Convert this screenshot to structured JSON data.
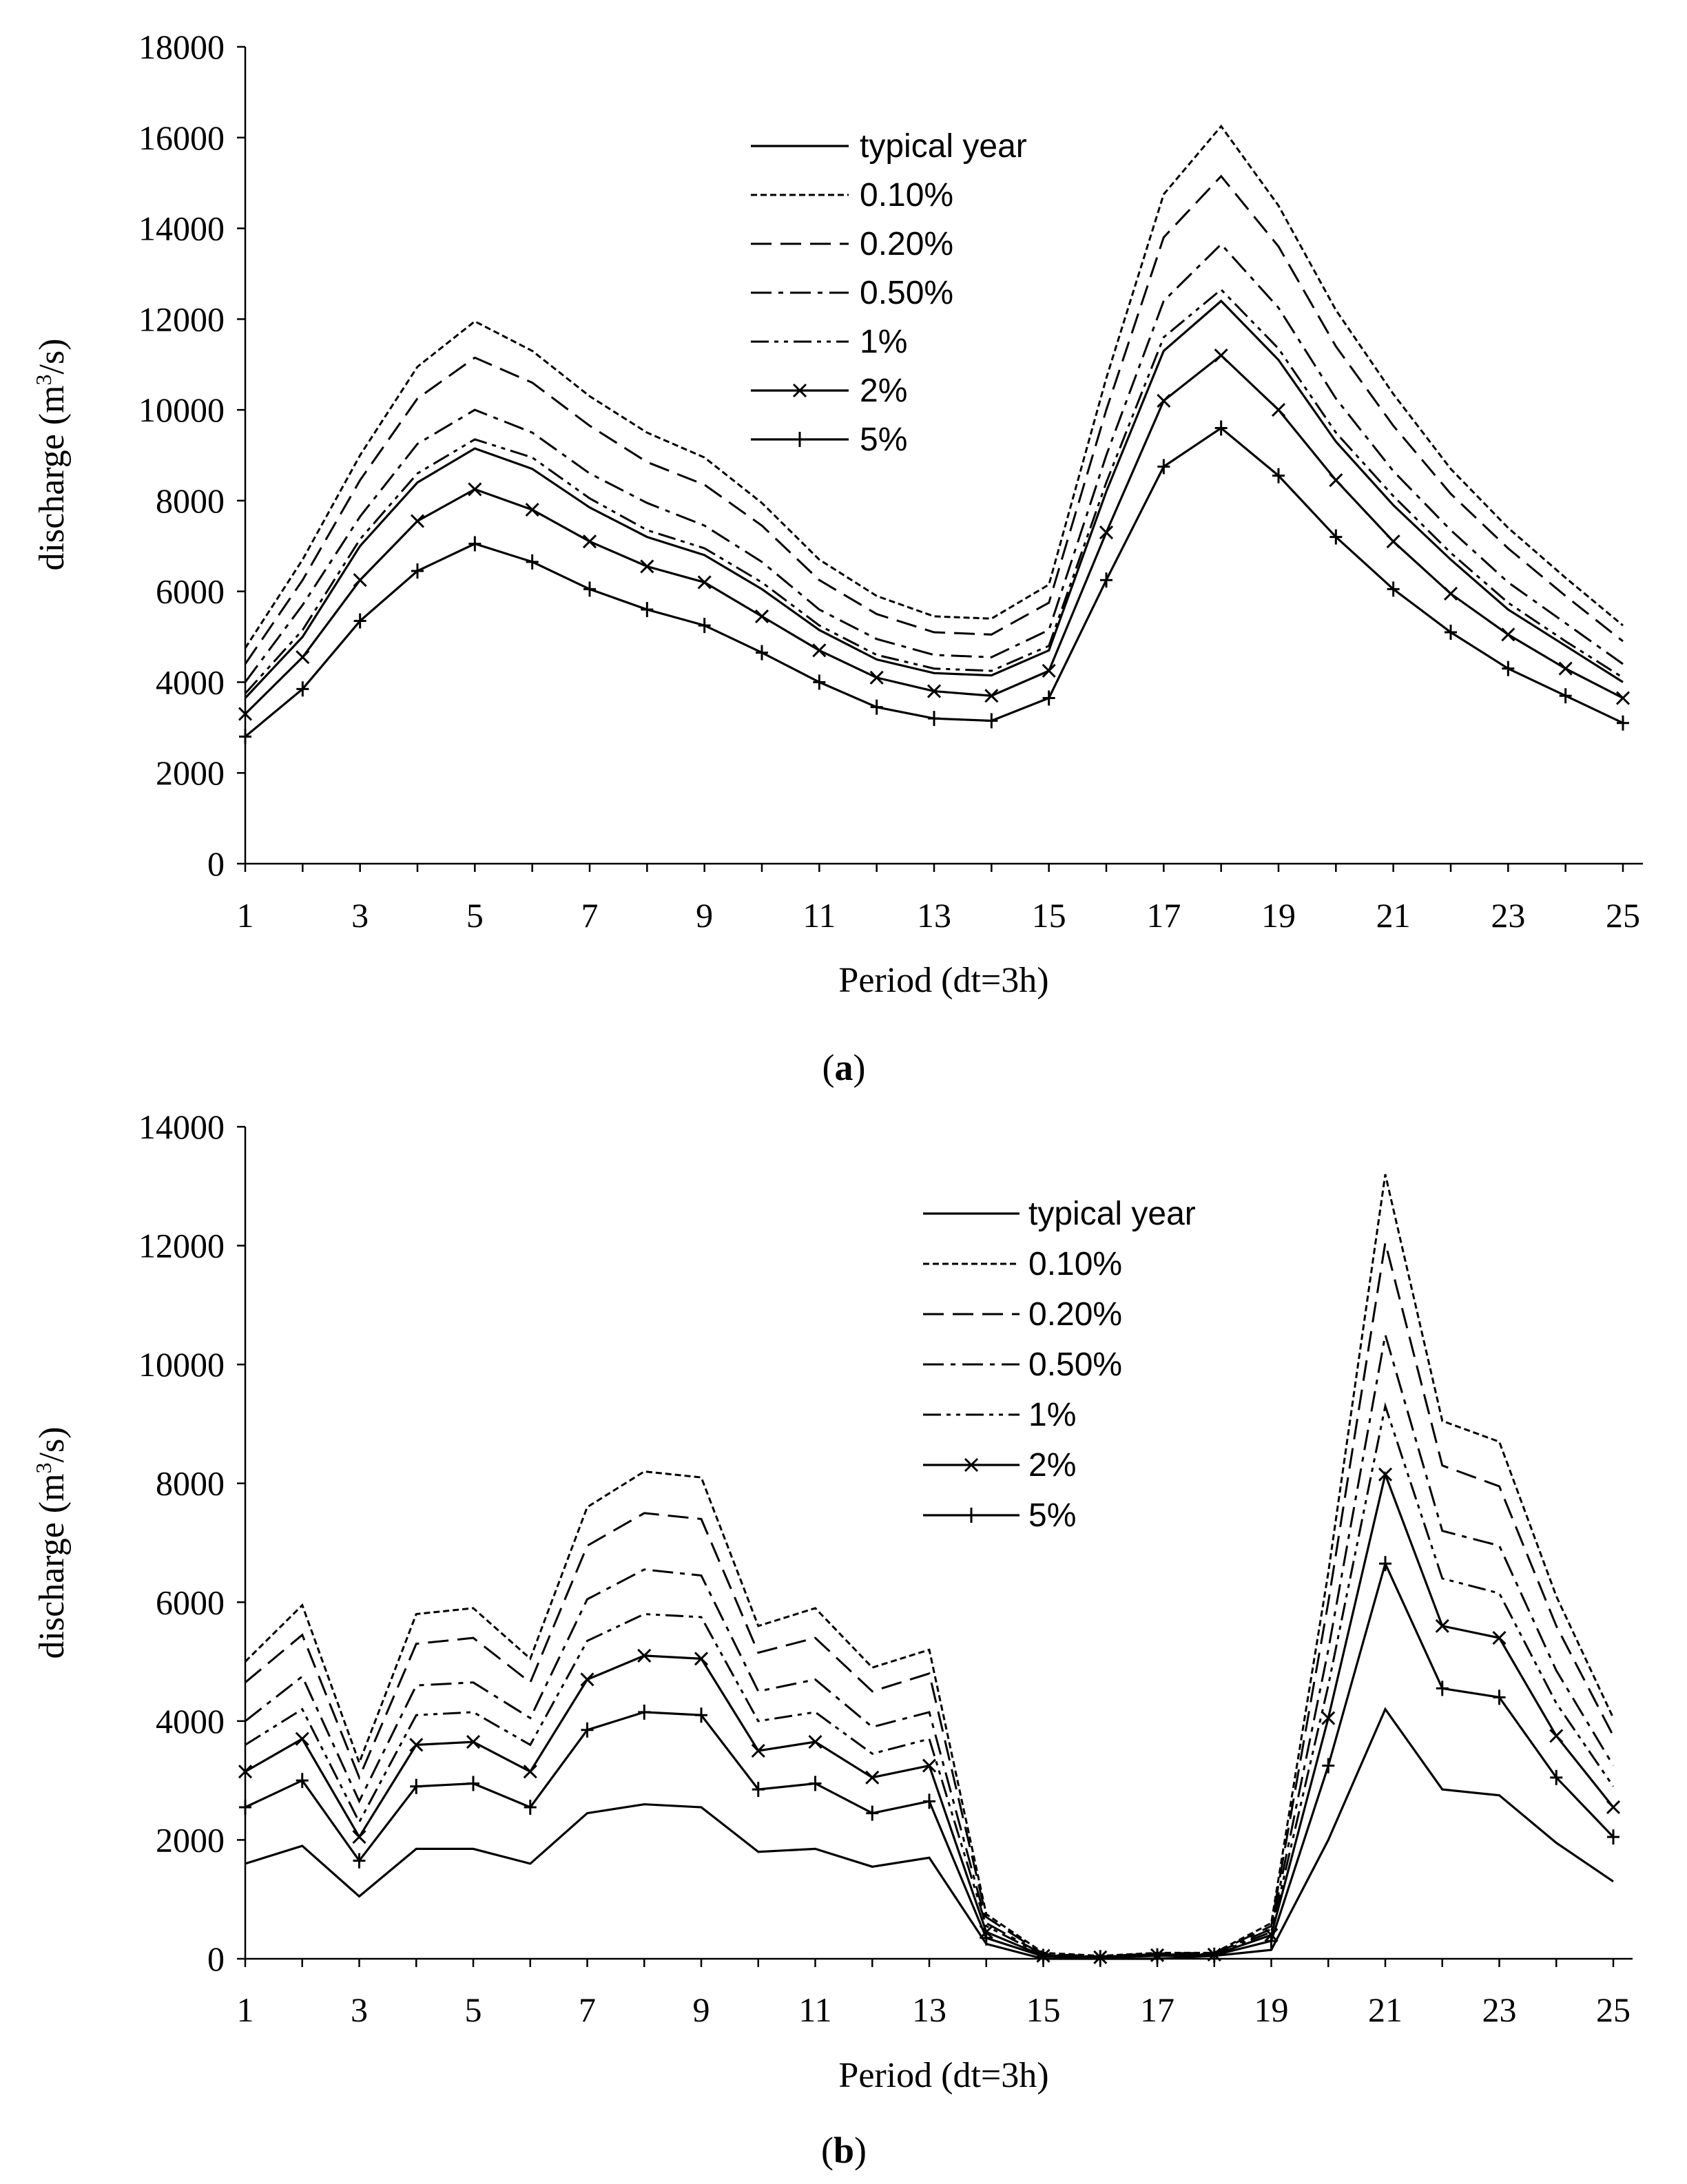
{
  "chart_data": [
    {
      "type": "line",
      "panel_label": "a",
      "title": "",
      "xlabel": "Period (dt=3h)",
      "ylabel": "discharge (m3/s)",
      "ylabel_main": "discharge (m",
      "ylabel_sup": "3",
      "ylabel_tail": "/s)",
      "xlim": [
        1,
        25
      ],
      "ylim": [
        0,
        18000
      ],
      "x_ticks": [
        "1",
        "3",
        "5",
        "7",
        "9",
        "11",
        "13",
        "15",
        "17",
        "19",
        "21",
        "23",
        "25"
      ],
      "y_ticks": [
        "0",
        "2000",
        "4000",
        "6000",
        "8000",
        "10000",
        "12000",
        "14000",
        "16000",
        "18000"
      ],
      "x": [
        1,
        2,
        3,
        4,
        5,
        6,
        7,
        8,
        9,
        10,
        11,
        12,
        13,
        14,
        15,
        16,
        17,
        18,
        19,
        20,
        21,
        22,
        23,
        24,
        25
      ],
      "legend": "upper center",
      "series": [
        {
          "name": "typical year",
          "style": "solid",
          "marker": "none",
          "values": [
            3650,
            5000,
            7000,
            8400,
            9150,
            8700,
            7850,
            7200,
            6800,
            6050,
            5150,
            4500,
            4200,
            4150,
            4700,
            8200,
            11300,
            12400,
            11100,
            9300,
            7900,
            6700,
            5600,
            4800,
            4000
          ]
        },
        {
          "name": "0.10%",
          "style": "dotted",
          "marker": "none",
          "values": [
            4750,
            6700,
            9000,
            10950,
            11950,
            11300,
            10300,
            9500,
            8950,
            7950,
            6700,
            5900,
            5450,
            5400,
            6150,
            10700,
            14750,
            16250,
            14500,
            12200,
            10350,
            8700,
            7400,
            6300,
            5250
          ]
        },
        {
          "name": "0.20%",
          "style": "dashed",
          "marker": "none",
          "values": [
            4400,
            6250,
            8450,
            10250,
            11150,
            10600,
            9650,
            8850,
            8350,
            7450,
            6250,
            5500,
            5100,
            5050,
            5750,
            10000,
            13800,
            15150,
            13600,
            11400,
            9650,
            8150,
            6950,
            5900,
            4900
          ]
        },
        {
          "name": "0.50%",
          "style": "dashdot",
          "marker": "none",
          "values": [
            4000,
            5700,
            7650,
            9250,
            10000,
            9500,
            8600,
            7950,
            7450,
            6650,
            5600,
            4950,
            4600,
            4550,
            5150,
            9000,
            12400,
            13650,
            12250,
            10250,
            8650,
            7350,
            6200,
            5300,
            4400
          ]
        },
        {
          "name": "1%",
          "style": "dashdotdot",
          "marker": "none",
          "values": [
            3750,
            5150,
            7150,
            8600,
            9350,
            8950,
            8050,
            7350,
            6950,
            6200,
            5250,
            4600,
            4300,
            4250,
            4800,
            8400,
            11600,
            12650,
            11350,
            9500,
            8100,
            6850,
            5750,
            4900,
            4100
          ]
        },
        {
          "name": "2%",
          "style": "solid",
          "marker": "x",
          "values": [
            3300,
            4550,
            6250,
            7550,
            8250,
            7800,
            7100,
            6550,
            6200,
            5450,
            4700,
            4100,
            3800,
            3700,
            4250,
            7300,
            10200,
            11200,
            10000,
            8450,
            7100,
            5950,
            5050,
            4300,
            3650
          ]
        },
        {
          "name": "5%",
          "style": "solid",
          "marker": "plus",
          "values": [
            2800,
            3850,
            5350,
            6450,
            7050,
            6650,
            6050,
            5600,
            5250,
            4650,
            4000,
            3450,
            3200,
            3150,
            3650,
            6250,
            8750,
            9600,
            8550,
            7200,
            6050,
            5100,
            4300,
            3700,
            3100
          ]
        }
      ]
    },
    {
      "type": "line",
      "panel_label": "b",
      "title": "",
      "xlabel": "Period  (dt=3h)",
      "ylabel": "discharge (m3/s)",
      "ylabel_main": "discharge (m",
      "ylabel_sup": "3",
      "ylabel_tail": "/s)",
      "xlim": [
        1,
        25
      ],
      "ylim": [
        0,
        14000
      ],
      "x_ticks": [
        "1",
        "3",
        "5",
        "7",
        "9",
        "11",
        "13",
        "15",
        "17",
        "19",
        "21",
        "23",
        "25"
      ],
      "y_ticks": [
        "0",
        "2000",
        "4000",
        "6000",
        "8000",
        "10000",
        "12000",
        "14000"
      ],
      "x": [
        1,
        2,
        3,
        4,
        5,
        6,
        7,
        8,
        9,
        10,
        11,
        12,
        13,
        14,
        15,
        16,
        17,
        18,
        19,
        20,
        21,
        22,
        23,
        24,
        25
      ],
      "legend": "upper right",
      "series": [
        {
          "name": "typical year",
          "style": "solid",
          "marker": "none",
          "values": [
            1600,
            1900,
            1050,
            1850,
            1850,
            1600,
            2450,
            2600,
            2550,
            1800,
            1850,
            1550,
            1700,
            250,
            0,
            0,
            0,
            50,
            150,
            2000,
            4200,
            2850,
            2750,
            1950,
            1300
          ]
        },
        {
          "name": "0.10%",
          "style": "dotted",
          "marker": "none",
          "values": [
            5000,
            5950,
            3300,
            5800,
            5900,
            5050,
            7600,
            8200,
            8100,
            5600,
            5900,
            4900,
            5200,
            750,
            100,
            50,
            100,
            100,
            600,
            6500,
            13200,
            9050,
            8700,
            6100,
            4050
          ]
        },
        {
          "name": "0.20%",
          "style": "dashed",
          "marker": "none",
          "values": [
            4650,
            5450,
            3050,
            5300,
            5400,
            4650,
            6950,
            7500,
            7400,
            5150,
            5400,
            4500,
            4800,
            700,
            80,
            40,
            90,
            100,
            550,
            6000,
            12050,
            8300,
            7950,
            5600,
            3750
          ]
        },
        {
          "name": "0.50%",
          "style": "dashdot",
          "marker": "none",
          "values": [
            4000,
            4750,
            2650,
            4600,
            4650,
            4050,
            6050,
            6550,
            6450,
            4500,
            4700,
            3900,
            4150,
            600,
            70,
            35,
            80,
            90,
            500,
            5200,
            10500,
            7200,
            6950,
            4850,
            3250
          ]
        },
        {
          "name": "1%",
          "style": "dashdotdot",
          "marker": "none",
          "values": [
            3600,
            4200,
            2300,
            4100,
            4150,
            3600,
            5350,
            5800,
            5750,
            4000,
            4150,
            3450,
            3700,
            550,
            60,
            30,
            70,
            80,
            450,
            4600,
            9300,
            6400,
            6150,
            4300,
            2900
          ]
        },
        {
          "name": "2%",
          "style": "solid",
          "marker": "x",
          "values": [
            3150,
            3700,
            2050,
            3600,
            3650,
            3150,
            4700,
            5100,
            5050,
            3500,
            3650,
            3050,
            3250,
            450,
            50,
            25,
            60,
            70,
            400,
            4050,
            8150,
            5600,
            5400,
            3750,
            2550
          ]
        },
        {
          "name": "5%",
          "style": "solid",
          "marker": "plus",
          "values": [
            2550,
            3000,
            1650,
            2900,
            2950,
            2550,
            3850,
            4150,
            4100,
            2850,
            2950,
            2450,
            2650,
            350,
            40,
            20,
            50,
            60,
            300,
            3250,
            6650,
            4550,
            4400,
            3050,
            2050
          ]
        }
      ]
    }
  ]
}
